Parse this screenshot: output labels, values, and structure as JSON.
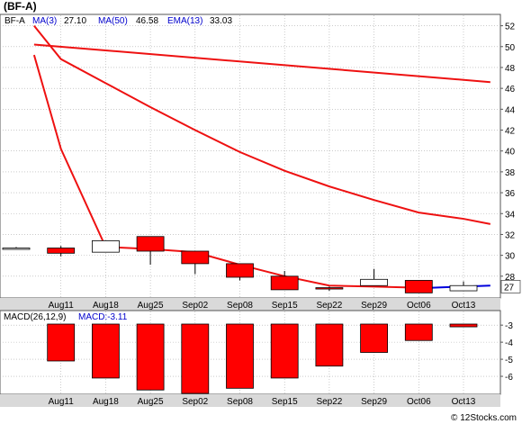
{
  "title": "(BF-A)",
  "watermark": "© 12Stocks.com",
  "legend": {
    "symbol": "BF-A",
    "ma3_label": "MA(3)",
    "ma3_value": "27.10",
    "ma50_label": "MA(50)",
    "ma50_value": "46.58",
    "ema13_label": "EMA(13)",
    "ema13_value": "33.03"
  },
  "macd_legend": {
    "name": "MACD(26,12,9)",
    "label": "MACD:-3.11"
  },
  "colors": {
    "up": "#ffffff",
    "down": "#ff0000",
    "ma": "#ee1111",
    "ma3": "#0000dd",
    "grid": "#aaaaaa",
    "axis_bg": "#d9d9d9",
    "legend_blue": "#0000cc"
  },
  "chart_data": [
    {
      "type": "candlestick",
      "title": "(BF-A)",
      "ylim": [
        26,
        53
      ],
      "y_ticks": [
        28,
        30,
        32,
        34,
        36,
        38,
        40,
        42,
        44,
        46,
        48,
        50,
        52
      ],
      "last_price_label": "27",
      "x_labels": [
        "Aug11",
        "Aug18",
        "Aug25",
        "Sep02",
        "Sep08",
        "Sep15",
        "Sep22",
        "Sep29",
        "Oct06",
        "Oct13"
      ],
      "candles": [
        {
          "open": 30.7,
          "close": 30.7,
          "high": 30.8,
          "low": 30.6
        },
        {
          "open": 30.7,
          "close": 30.2,
          "high": 30.9,
          "low": 29.9
        },
        {
          "open": 30.3,
          "close": 31.4,
          "high": 31.4,
          "low": 30.3
        },
        {
          "open": 31.8,
          "close": 30.4,
          "high": 31.8,
          "low": 29.1
        },
        {
          "open": 30.4,
          "close": 29.2,
          "high": 30.4,
          "low": 28.2
        },
        {
          "open": 29.2,
          "close": 27.9,
          "high": 29.2,
          "low": 27.6
        },
        {
          "open": 28.0,
          "close": 26.7,
          "high": 28.5,
          "low": 26.7
        },
        {
          "open": 26.9,
          "close": 26.8,
          "high": 27.0,
          "low": 26.6
        },
        {
          "open": 27.1,
          "close": 27.7,
          "high": 28.7,
          "low": 27.1
        },
        {
          "open": 27.6,
          "close": 26.4,
          "high": 27.6,
          "low": 26.4
        },
        {
          "open": 26.6,
          "close": 27.1,
          "high": 27.5,
          "low": 26.6
        }
      ],
      "series": [
        {
          "name": "MA(50)",
          "x": [
            0.4,
            10.6
          ],
          "values": [
            50.2,
            46.6
          ]
        },
        {
          "name": "EMA(13)",
          "x": [
            0.4,
            1.0,
            2.0,
            3.0,
            4.0,
            5.0,
            6.0,
            7.0,
            8.0,
            9.0,
            10.0,
            10.6
          ],
          "values": [
            52.0,
            48.8,
            46.5,
            44.2,
            42.0,
            39.9,
            38.1,
            36.6,
            35.3,
            34.1,
            33.5,
            33.0
          ]
        },
        {
          "name": "MA(3)",
          "x": [
            0.4,
            1.0,
            2.0,
            3.0,
            4.0,
            5.0,
            6.0,
            7.0,
            8.0,
            9.0,
            9.3
          ],
          "values": [
            49.2,
            40.2,
            30.8,
            30.6,
            30.3,
            29.1,
            28.0,
            27.1,
            27.0,
            26.9,
            26.9
          ]
        },
        {
          "name": "MA(3) latest",
          "x": [
            9.3,
            10.6
          ],
          "values": [
            26.9,
            27.1
          ]
        }
      ]
    },
    {
      "type": "bar",
      "title": "MACD(26,12,9)",
      "ylim": [
        -7,
        -2.2
      ],
      "y_ticks": [
        -3,
        -4,
        -5,
        -6
      ],
      "x_labels": [
        "Aug11",
        "Aug18",
        "Aug25",
        "Sep02",
        "Sep08",
        "Sep15",
        "Sep22",
        "Sep29",
        "Oct06",
        "Oct13"
      ],
      "values": [
        -5.1,
        -6.1,
        -6.8,
        -7.0,
        -6.7,
        -6.1,
        -5.4,
        -4.6,
        -3.9,
        -3.1
      ]
    }
  ]
}
